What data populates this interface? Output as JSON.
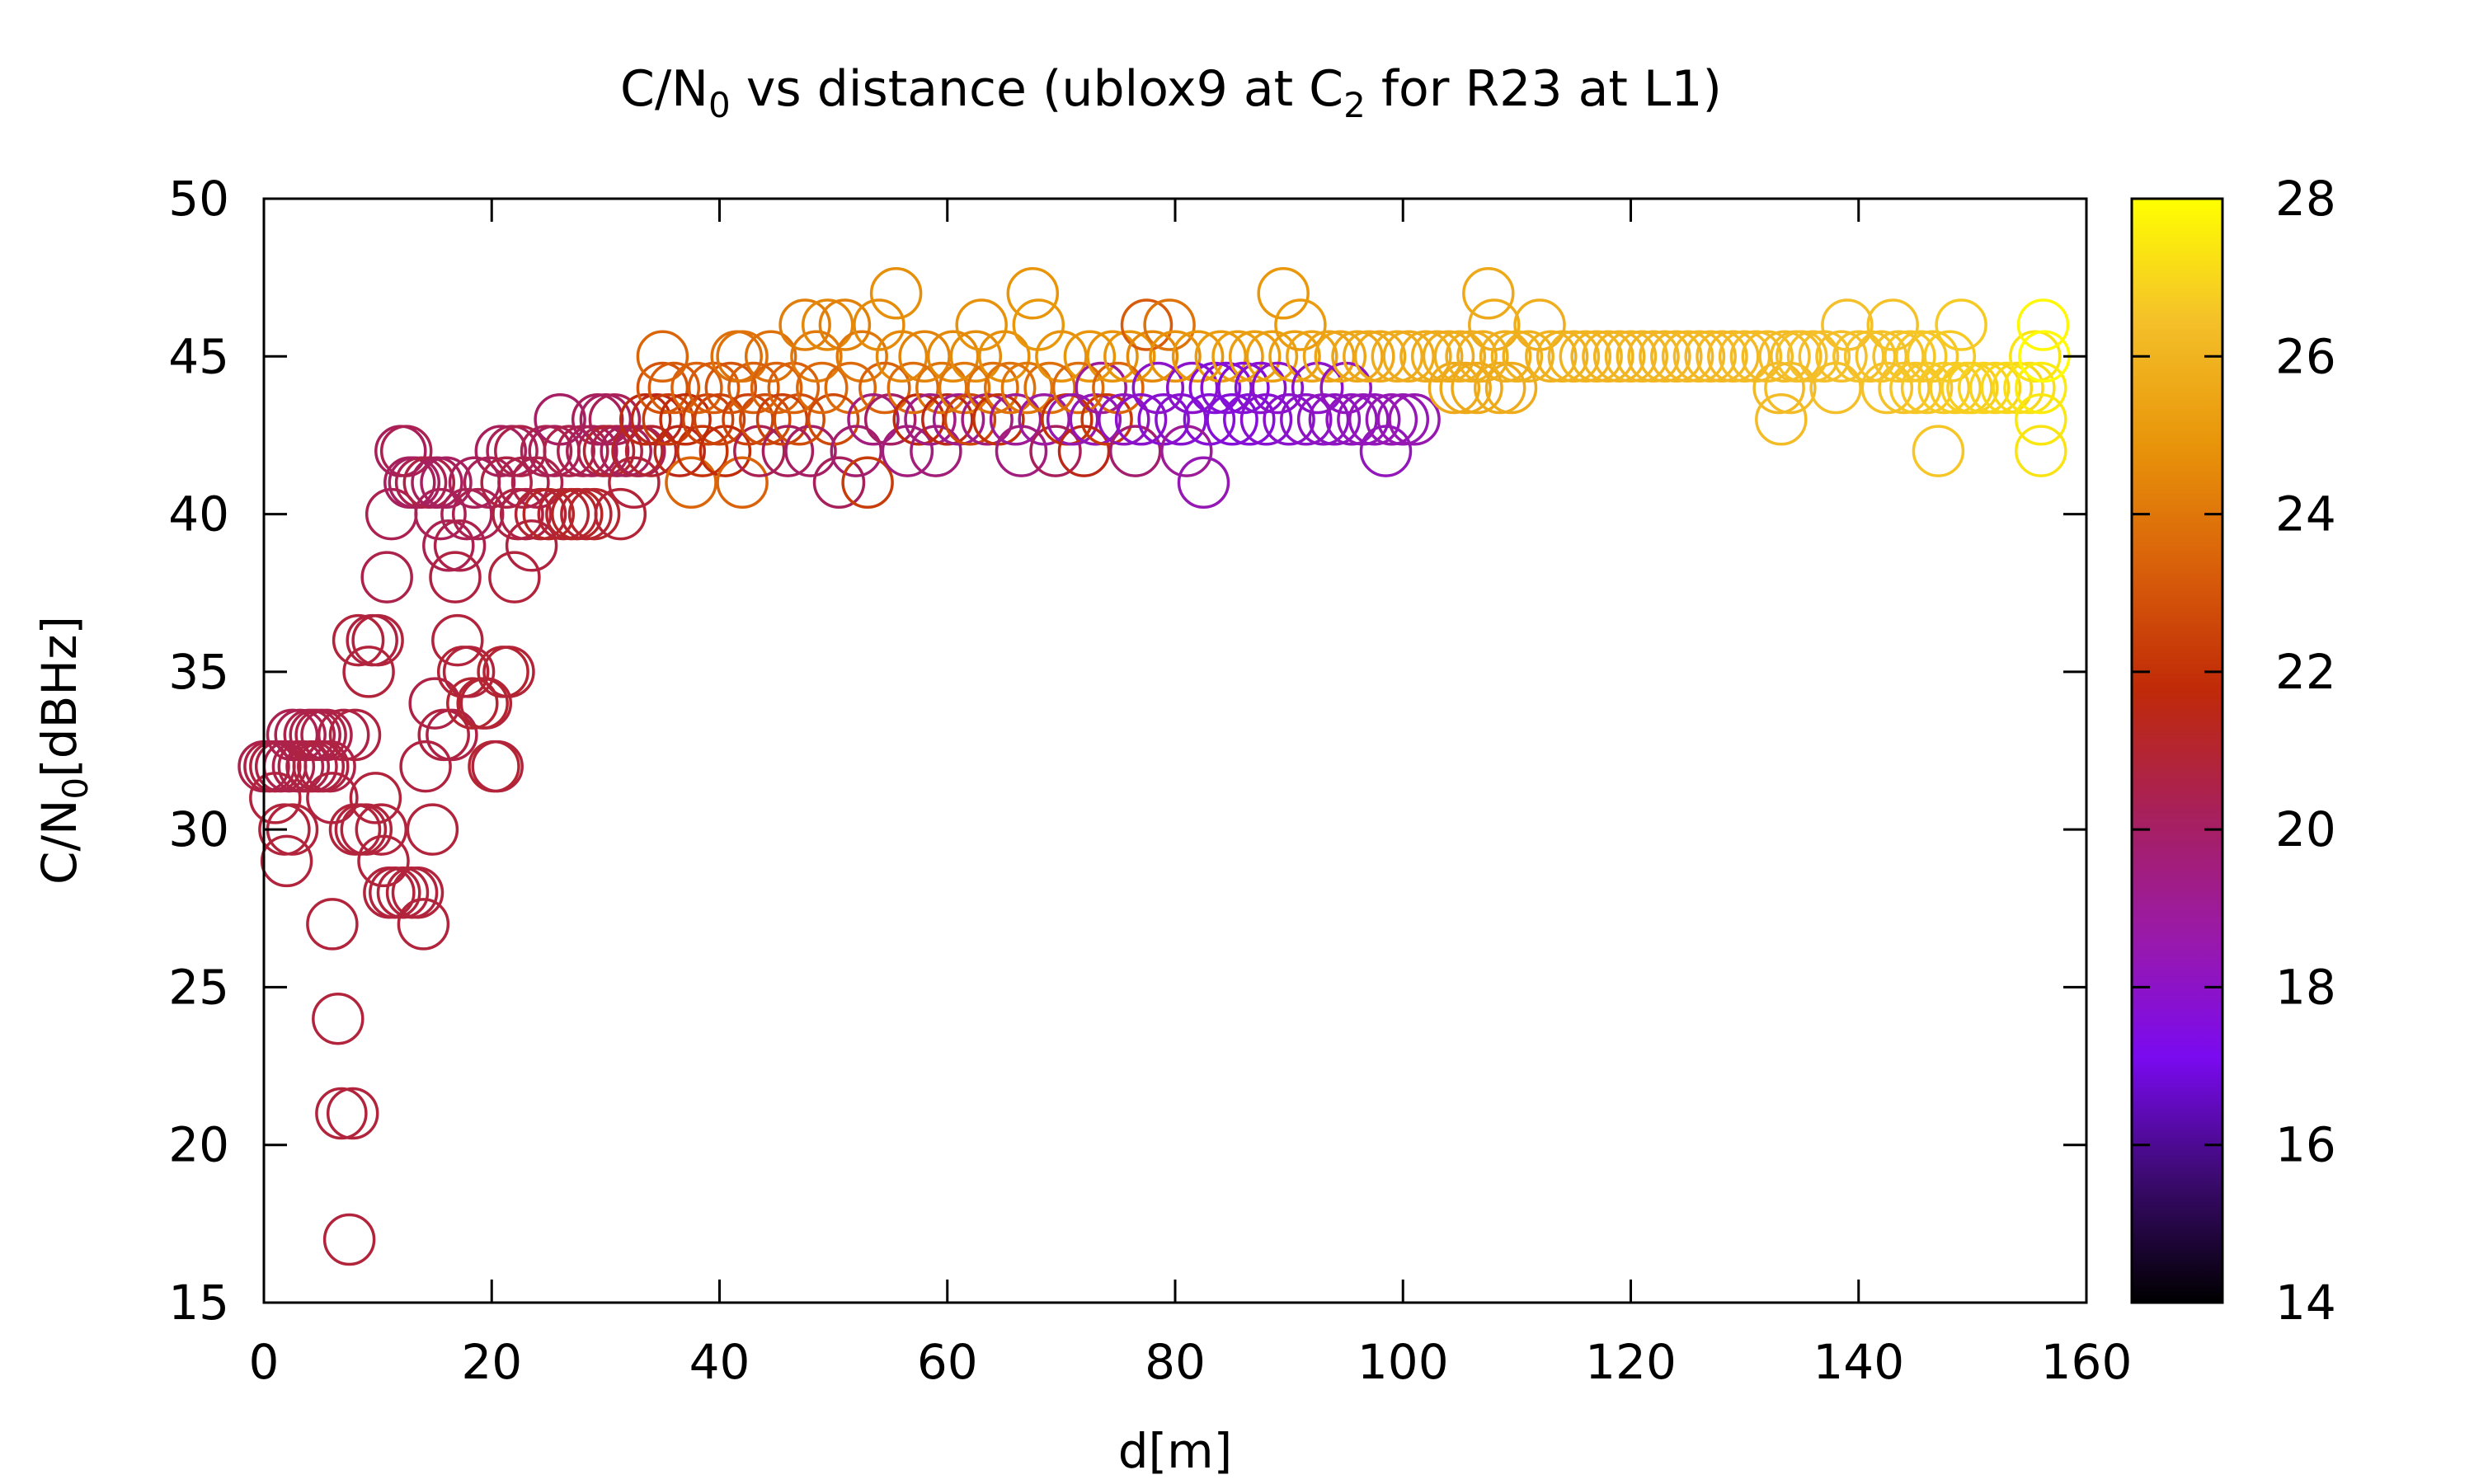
{
  "chart_data": {
    "type": "scatter",
    "title": {
      "pre": "C/N",
      "sub1": "0",
      "mid": " vs distance (ublox9 at C",
      "sub2": "2",
      "post": " for R23 at L1)"
    },
    "xlabel": "d[m]",
    "ylabel": {
      "pre": "C/N",
      "sub": "0",
      "post": "[dBHz]"
    },
    "xlim": [
      0,
      160
    ],
    "ylim": [
      15,
      50
    ],
    "xticks": [
      "0",
      "20",
      "40",
      "60",
      "80",
      "100",
      "120",
      "140",
      "160"
    ],
    "yticks": [
      "15",
      "20",
      "25",
      "30",
      "35",
      "40",
      "45",
      "50"
    ],
    "colorbar": {
      "range": [
        14,
        28
      ],
      "ticks": [
        "14",
        "16",
        "18",
        "20",
        "22",
        "24",
        "26",
        "28"
      ],
      "palette": [
        "#000000",
        "#3b0a6e",
        "#7a0af0",
        "#9a1aa8",
        "#a8205a",
        "#c02a08",
        "#d9600a",
        "#e8950a",
        "#f4c02a",
        "#ffff00"
      ]
    },
    "marker": "open-circle",
    "grid": false,
    "points": [
      [
        0,
        32,
        20.5
      ],
      [
        0.5,
        32,
        20.6
      ],
      [
        1,
        32,
        20.7
      ],
      [
        1,
        31,
        20.8
      ],
      [
        1.5,
        32,
        20.6
      ],
      [
        1.8,
        30,
        20.8
      ],
      [
        2,
        29,
        20.8
      ],
      [
        2.2,
        32,
        20.5
      ],
      [
        2.5,
        33,
        20.4
      ],
      [
        2.5,
        30,
        20.8
      ],
      [
        3,
        32,
        20.5
      ],
      [
        3.2,
        33,
        20.4
      ],
      [
        3.5,
        32,
        20.6
      ],
      [
        4,
        33,
        20.5
      ],
      [
        4.2,
        32,
        20.6
      ],
      [
        4.5,
        33,
        20.5
      ],
      [
        4.8,
        32,
        20.7
      ],
      [
        5,
        33,
        20.6
      ],
      [
        5.2,
        32,
        20.7
      ],
      [
        5.5,
        33,
        20.5
      ],
      [
        5.8,
        32,
        20.6
      ],
      [
        6,
        31,
        20.7
      ],
      [
        6,
        27,
        20.8
      ],
      [
        6.5,
        24,
        20.8
      ],
      [
        6.8,
        21,
        20.8
      ],
      [
        7,
        33,
        20.6
      ],
      [
        7.5,
        17,
        20.8
      ],
      [
        7.8,
        21,
        20.8
      ],
      [
        8,
        33,
        20.7
      ],
      [
        8,
        30,
        20.8
      ],
      [
        8.3,
        36,
        20.8
      ],
      [
        8.5,
        30,
        20.8
      ],
      [
        9,
        30,
        20.8
      ],
      [
        9.2,
        35,
        20.8
      ],
      [
        9.5,
        36,
        20.7
      ],
      [
        9.8,
        31,
        20.8
      ],
      [
        10,
        36,
        20.8
      ],
      [
        10.3,
        30,
        20.8
      ],
      [
        10.5,
        29,
        20.8
      ],
      [
        10.8,
        38,
        20.5
      ],
      [
        11,
        28,
        20.8
      ],
      [
        11.2,
        40,
        20.4
      ],
      [
        11.5,
        28,
        20.8
      ],
      [
        12,
        42,
        20.2
      ],
      [
        12.2,
        28,
        20.8
      ],
      [
        12.5,
        42,
        20.4
      ],
      [
        12.8,
        41,
        20.2
      ],
      [
        13,
        28,
        20.8
      ],
      [
        13.2,
        41,
        20.1
      ],
      [
        13.5,
        28,
        20.8
      ],
      [
        13.8,
        41,
        20.4
      ],
      [
        14,
        27,
        20.8
      ],
      [
        14.2,
        32,
        20.7
      ],
      [
        14.5,
        41,
        20.6
      ],
      [
        14.8,
        30,
        20.8
      ],
      [
        15,
        34,
        20.6
      ],
      [
        15.2,
        41,
        20.2
      ],
      [
        15.5,
        40,
        20.3
      ],
      [
        15.8,
        33,
        20.7
      ],
      [
        16,
        41,
        20.1
      ],
      [
        16.2,
        39,
        20.4
      ],
      [
        16.5,
        33,
        20.6
      ],
      [
        16.8,
        38,
        20.7
      ],
      [
        17,
        36,
        20.8
      ],
      [
        17.2,
        39,
        20.5
      ],
      [
        17.5,
        35,
        20.9
      ],
      [
        17.8,
        40,
        20.3
      ],
      [
        18,
        35,
        20.8
      ],
      [
        18.3,
        34,
        21.0
      ],
      [
        18.5,
        41,
        20.2
      ],
      [
        18.8,
        40,
        20.4
      ],
      [
        19.2,
        34,
        21.0
      ],
      [
        19.5,
        34,
        20.9
      ],
      [
        19.8,
        41,
        20.3
      ],
      [
        20.2,
        32,
        21.0
      ],
      [
        20.5,
        32,
        20.8
      ],
      [
        20.8,
        42,
        20.2
      ],
      [
        21,
        35,
        21.0
      ],
      [
        21.3,
        41,
        20.6
      ],
      [
        21.5,
        35,
        20.9
      ],
      [
        21.8,
        42,
        20.3
      ],
      [
        22,
        38,
        20.8
      ],
      [
        22.3,
        40,
        20.7
      ],
      [
        22.5,
        42,
        20.5
      ],
      [
        22.8,
        41,
        20.5
      ],
      [
        23,
        40,
        20.6
      ],
      [
        23.5,
        39,
        20.7
      ],
      [
        24,
        41,
        20.5
      ],
      [
        24.3,
        40,
        20.9
      ],
      [
        24.8,
        42,
        20.4
      ],
      [
        25,
        40,
        21.2
      ],
      [
        25.5,
        42,
        20.3
      ],
      [
        26,
        43,
        20.0
      ],
      [
        26.3,
        40,
        21.0
      ],
      [
        26.8,
        42,
        20.5
      ],
      [
        27,
        40,
        21.1
      ],
      [
        27.5,
        40,
        21.2
      ],
      [
        28,
        42,
        20.5
      ],
      [
        28.3,
        40,
        21.0
      ],
      [
        28.8,
        42,
        20.3
      ],
      [
        29,
        40,
        21.1
      ],
      [
        29.3,
        43,
        20.2
      ],
      [
        29.8,
        42,
        20.4
      ],
      [
        30,
        43,
        20.1
      ],
      [
        30.3,
        42,
        21.0
      ],
      [
        30.8,
        43,
        20.3
      ],
      [
        31,
        42,
        20.5
      ],
      [
        31.3,
        40,
        20.9
      ],
      [
        31.8,
        42,
        20.2
      ],
      [
        32.5,
        41,
        20.8
      ],
      [
        32.8,
        42,
        21.2
      ],
      [
        33,
        42,
        20.4
      ],
      [
        33.5,
        43,
        21.6
      ],
      [
        34,
        42,
        21.0
      ],
      [
        34.5,
        43,
        21.5
      ],
      [
        35,
        44,
        23.0
      ],
      [
        35,
        45,
        23.5
      ],
      [
        35.5,
        43,
        22.3
      ],
      [
        36,
        44,
        23.2
      ],
      [
        36.5,
        42,
        21.5
      ],
      [
        37,
        43,
        21.8
      ],
      [
        37.5,
        41,
        23.5
      ],
      [
        38,
        44,
        23.4
      ],
      [
        38.5,
        42,
        22.0
      ],
      [
        39,
        43,
        22.5
      ],
      [
        39.5,
        44,
        23.2
      ],
      [
        40,
        43,
        22.5
      ],
      [
        40.5,
        42,
        21.8
      ],
      [
        41,
        44,
        23.0
      ],
      [
        41.5,
        45,
        23.8
      ],
      [
        42,
        41,
        23.4
      ],
      [
        42,
        45,
        23.9
      ],
      [
        42.5,
        43,
        22.5
      ],
      [
        43,
        44,
        23.3
      ],
      [
        43.5,
        42,
        20.4
      ],
      [
        44,
        43,
        22.8
      ],
      [
        44.5,
        45,
        23.8
      ],
      [
        45,
        44,
        23.4
      ],
      [
        45.5,
        43,
        22.4
      ],
      [
        46,
        42,
        20.2
      ],
      [
        46.5,
        44,
        23.4
      ],
      [
        47,
        43,
        22.8
      ],
      [
        47.5,
        46,
        24.2
      ],
      [
        48,
        42,
        20.0
      ],
      [
        48.5,
        45,
        24.1
      ],
      [
        49,
        44,
        23.6
      ],
      [
        49.5,
        46,
        24.5
      ],
      [
        50,
        43,
        22.7
      ],
      [
        50.5,
        41,
        20.2
      ],
      [
        51,
        46,
        24.3
      ],
      [
        51.5,
        44,
        23.6
      ],
      [
        52,
        42,
        19.8
      ],
      [
        52.5,
        45,
        24.0
      ],
      [
        53,
        41,
        22.3
      ],
      [
        53.5,
        43,
        19.5
      ],
      [
        54,
        46,
        24.6
      ],
      [
        54.5,
        44,
        23.4
      ],
      [
        55,
        43,
        20.0
      ],
      [
        55.5,
        47,
        24.7
      ],
      [
        56,
        45,
        24.5
      ],
      [
        56.5,
        42,
        19.5
      ],
      [
        57,
        44,
        23.7
      ],
      [
        57.5,
        43,
        21.8
      ],
      [
        58,
        45,
        24.4
      ],
      [
        58.5,
        43,
        19.4
      ],
      [
        59,
        42,
        19.6
      ],
      [
        59.5,
        44,
        23.9
      ],
      [
        60,
        43,
        21.5
      ],
      [
        60.5,
        45,
        24.5
      ],
      [
        61,
        43,
        19.2
      ],
      [
        61.5,
        44,
        24.0
      ],
      [
        62,
        43,
        22.6
      ],
      [
        62.5,
        45,
        24.6
      ],
      [
        63,
        46,
        24.8
      ],
      [
        63.5,
        43,
        19.5
      ],
      [
        64,
        44,
        23.8
      ],
      [
        64.5,
        43,
        22.0
      ],
      [
        65,
        45,
        24.7
      ],
      [
        65.5,
        44,
        23.9
      ],
      [
        66,
        43,
        19.0
      ],
      [
        66.5,
        42,
        19.5
      ],
      [
        67,
        44,
        24.0
      ],
      [
        67.5,
        47,
        24.9
      ],
      [
        68,
        46,
        25.0
      ],
      [
        68.5,
        43,
        18.8
      ],
      [
        69,
        44,
        23.8
      ],
      [
        69.5,
        42,
        20.2
      ],
      [
        70,
        45,
        24.8
      ],
      [
        70.5,
        43,
        22.0
      ],
      [
        71,
        43,
        18.5
      ],
      [
        71.5,
        44,
        23.7
      ],
      [
        72,
        42,
        21.5
      ],
      [
        72.5,
        45,
        24.9
      ],
      [
        73,
        43,
        18.3
      ],
      [
        73.5,
        44,
        19.0
      ],
      [
        74,
        43,
        22.2
      ],
      [
        74.5,
        45,
        24.8
      ],
      [
        75,
        44,
        23.5
      ],
      [
        75.5,
        43,
        18.2
      ],
      [
        76,
        45,
        24.9
      ],
      [
        76.5,
        42,
        19.8
      ],
      [
        77,
        43,
        17.9
      ],
      [
        77.5,
        46,
        23.2
      ],
      [
        78,
        45,
        24.5
      ],
      [
        78.5,
        44,
        18.0
      ],
      [
        79,
        43,
        17.8
      ],
      [
        79.5,
        46,
        23.9
      ],
      [
        80,
        45,
        24.8
      ],
      [
        80.5,
        43,
        17.8
      ],
      [
        81,
        42,
        19.0
      ],
      [
        81.5,
        44,
        17.9
      ],
      [
        82,
        45,
        25.0
      ],
      [
        82.5,
        41,
        18.4
      ],
      [
        83,
        43,
        17.7
      ],
      [
        83.5,
        44,
        17.6
      ],
      [
        84,
        45,
        25.1
      ],
      [
        84.5,
        44,
        17.7
      ],
      [
        85,
        43,
        17.6
      ],
      [
        85.5,
        45,
        25.2
      ],
      [
        86,
        44,
        17.6
      ],
      [
        86.5,
        43,
        17.7
      ],
      [
        87,
        45,
        25.2
      ],
      [
        87.5,
        44,
        17.8
      ],
      [
        88,
        43,
        17.8
      ],
      [
        88.5,
        45,
        25.3
      ],
      [
        89,
        44,
        17.9
      ],
      [
        89.5,
        47,
        25.0
      ],
      [
        90,
        43,
        17.9
      ],
      [
        90.5,
        45,
        25.3
      ],
      [
        91,
        46,
        25.1
      ],
      [
        91.5,
        43,
        18.0
      ],
      [
        92,
        45,
        25.4
      ],
      [
        92.5,
        44,
        18.0
      ],
      [
        93,
        43,
        18.1
      ],
      [
        93.5,
        45,
        25.4
      ],
      [
        94,
        43,
        18.1
      ],
      [
        94.5,
        45,
        25.5
      ],
      [
        95,
        44,
        18.2
      ],
      [
        95.5,
        43,
        18.2
      ],
      [
        96,
        45,
        25.5
      ],
      [
        96.5,
        43,
        18.3
      ],
      [
        97,
        45,
        25.6
      ],
      [
        97.5,
        43,
        18.3
      ],
      [
        98,
        45,
        25.6
      ],
      [
        98.5,
        42,
        18.3
      ],
      [
        99,
        43,
        18.4
      ],
      [
        99.5,
        45,
        25.7
      ],
      [
        100,
        43,
        18.4
      ],
      [
        100.5,
        45,
        25.7
      ],
      [
        101,
        43,
        18.5
      ],
      [
        102,
        45,
        25.7
      ],
      [
        103,
        45,
        25.7
      ],
      [
        104,
        45,
        25.7
      ],
      [
        104.5,
        44,
        25.6
      ],
      [
        105,
        45,
        25.8
      ],
      [
        105.5,
        44,
        25.6
      ],
      [
        106,
        45,
        25.8
      ],
      [
        106.5,
        44,
        25.6
      ],
      [
        107,
        45,
        25.8
      ],
      [
        107.5,
        47,
        25.6
      ],
      [
        108,
        46,
        25.7
      ],
      [
        108.5,
        44,
        25.7
      ],
      [
        109,
        45,
        25.8
      ],
      [
        109.5,
        44,
        25.7
      ],
      [
        110,
        45,
        25.9
      ],
      [
        111,
        45,
        25.9
      ],
      [
        112,
        46,
        25.8
      ],
      [
        113,
        45,
        25.9
      ],
      [
        114,
        45,
        25.9
      ],
      [
        115,
        45,
        26.0
      ],
      [
        116,
        45,
        26.0
      ],
      [
        117,
        45,
        26.0
      ],
      [
        118,
        45,
        26.0
      ],
      [
        119,
        45,
        26.0
      ],
      [
        120,
        45,
        26.1
      ],
      [
        121,
        45,
        26.1
      ],
      [
        122,
        45,
        26.1
      ],
      [
        123,
        45,
        26.1
      ],
      [
        124,
        45,
        26.1
      ],
      [
        125,
        45,
        26.2
      ],
      [
        126,
        45,
        26.2
      ],
      [
        127,
        45,
        26.2
      ],
      [
        128,
        45,
        26.2
      ],
      [
        129,
        45,
        26.2
      ],
      [
        130,
        45,
        26.3
      ],
      [
        131,
        45,
        26.3
      ],
      [
        132,
        45,
        26.3
      ],
      [
        133,
        44,
        26.2
      ],
      [
        133.2,
        43,
        26.3
      ],
      [
        133.5,
        45,
        26.3
      ],
      [
        134,
        44,
        26.3
      ],
      [
        134.5,
        45,
        26.3
      ],
      [
        135,
        45,
        26.4
      ],
      [
        136,
        45,
        26.4
      ],
      [
        137,
        45,
        26.4
      ],
      [
        138,
        44,
        26.4
      ],
      [
        138.5,
        45,
        26.4
      ],
      [
        139,
        46,
        26.4
      ],
      [
        140,
        45,
        26.5
      ],
      [
        141,
        45,
        26.5
      ],
      [
        142,
        45,
        26.5
      ],
      [
        142.5,
        44,
        26.5
      ],
      [
        143,
        46,
        26.5
      ],
      [
        143.5,
        45,
        26.5
      ],
      [
        144,
        44,
        26.5
      ],
      [
        144.5,
        45,
        26.6
      ],
      [
        145,
        44,
        26.6
      ],
      [
        145.5,
        45,
        26.6
      ],
      [
        146,
        44,
        26.6
      ],
      [
        146.5,
        45,
        26.6
      ],
      [
        147,
        42,
        26.6
      ],
      [
        147.5,
        44,
        26.7
      ],
      [
        148,
        45,
        26.7
      ],
      [
        148.5,
        44,
        26.7
      ],
      [
        149,
        46,
        26.7
      ],
      [
        149.5,
        44,
        26.8
      ],
      [
        150,
        44,
        26.8
      ],
      [
        151,
        44,
        26.9
      ],
      [
        152,
        44,
        26.9
      ],
      [
        153,
        44,
        27.0
      ],
      [
        154,
        44,
        27.0
      ],
      [
        155,
        44,
        27.2
      ],
      [
        155.5,
        45,
        27.3
      ],
      [
        156,
        44,
        27.5
      ],
      [
        156,
        43,
        27.4
      ],
      [
        156,
        42,
        27.3
      ],
      [
        156.2,
        46,
        27.8
      ],
      [
        156.3,
        45,
        27.9
      ]
    ]
  }
}
